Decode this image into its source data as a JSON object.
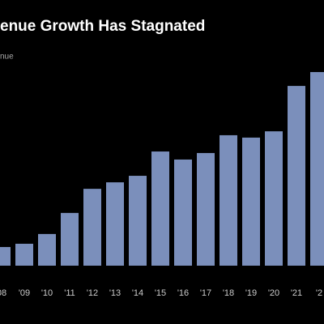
{
  "chart_data": {
    "type": "bar",
    "title": "enue Growth Has Stagnated",
    "subtitle": "nue",
    "categories": [
      "08",
      "'09",
      "'10",
      "'11",
      "'12",
      "'13",
      "'14",
      "'15",
      "'16",
      "'17",
      "'18",
      "'19",
      "'20",
      "'21",
      "'2"
    ],
    "values": [
      8.6,
      10.1,
      14.6,
      24.3,
      35.4,
      38.4,
      41.4,
      52.6,
      48.9,
      51.9,
      60.1,
      59.0,
      61.9,
      82.8,
      89.2
    ],
    "color": "#7b8fbb",
    "ylim": [
      0,
      100
    ]
  }
}
